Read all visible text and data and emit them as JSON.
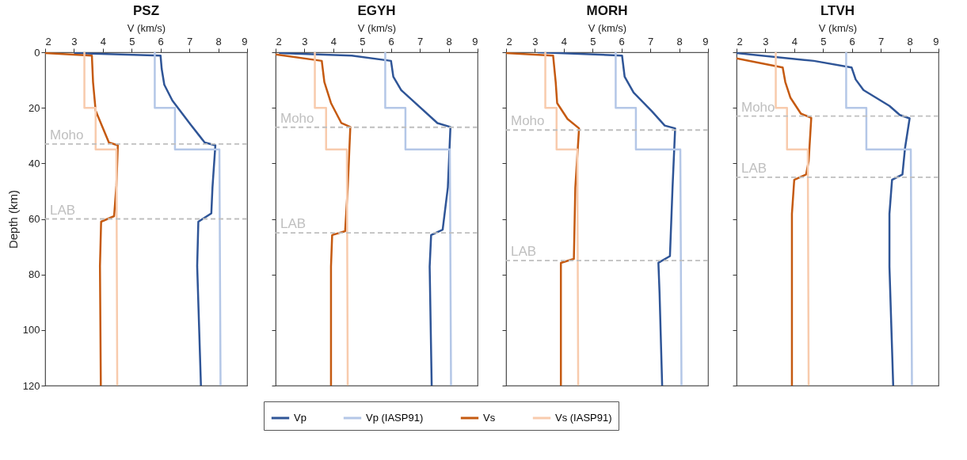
{
  "chart_data": [
    {
      "type": "line",
      "title": "PSZ",
      "xlabel": "V (km/s)",
      "ylabel": "Depth (km)",
      "xlim": [
        2,
        9
      ],
      "xticks": [
        2,
        3,
        4,
        5,
        6,
        7,
        8,
        9
      ],
      "ylim": [
        120,
        0
      ],
      "yticks": [
        0,
        20,
        40,
        60,
        80,
        100,
        120
      ],
      "legend": "bottom",
      "ref_lines": [
        {
          "axis": "y",
          "value": 33,
          "label": "Moho",
          "color": "#bfbfbf",
          "line_style": "dashed"
        },
        {
          "axis": "y",
          "value": 60,
          "label": "LAB",
          "color": "#bfbfbf",
          "line_style": "dashed"
        }
      ],
      "series": [
        {
          "name": "Vp",
          "color": "#2f5597",
          "x": [
            3.0,
            6.0,
            6.04,
            6.13,
            6.41,
            7.04,
            7.53,
            7.9,
            7.8,
            7.76,
            7.31,
            7.27,
            7.4
          ],
          "values": [
            0.3,
            1.2,
            6,
            11.7,
            17.4,
            26,
            32.5,
            33.5,
            48.7,
            58,
            61,
            77,
            120
          ]
        },
        {
          "name": "Vp (IASP91)",
          "color": "#b4c7e7",
          "x": [
            5.8,
            5.8,
            6.5,
            6.5,
            8.04,
            8.08
          ],
          "values": [
            0,
            20,
            20,
            35,
            35,
            120
          ]
        },
        {
          "name": "Vs",
          "color": "#c55a11",
          "x": [
            2.0,
            3.62,
            3.66,
            3.75,
            4.21,
            4.52,
            4.47,
            4.39,
            3.94,
            3.9,
            3.93
          ],
          "values": [
            0.3,
            1.2,
            10.7,
            21,
            32.5,
            33.5,
            48,
            59,
            61,
            77,
            120
          ]
        },
        {
          "name": "Vs (IASP91)",
          "color": "#f8cbad",
          "x": [
            3.36,
            3.36,
            3.75,
            3.75,
            4.47,
            4.5
          ],
          "values": [
            0,
            20,
            20,
            35,
            35,
            120
          ]
        }
      ]
    },
    {
      "type": "line",
      "title": "EGYH",
      "xlabel": "V (km/s)",
      "xlim": [
        2,
        9
      ],
      "xticks": [
        2,
        3,
        4,
        5,
        6,
        7,
        8,
        9
      ],
      "ylim": [
        120,
        0
      ],
      "yticks": [
        0,
        20,
        40,
        60,
        80,
        100,
        120
      ],
      "tick_labels": "x",
      "ref_lines": [
        {
          "axis": "y",
          "value": 27,
          "label": "Moho",
          "color": "#bfbfbf",
          "line_style": "dashed"
        },
        {
          "axis": "y",
          "value": 65,
          "label": "LAB",
          "color": "#bfbfbf",
          "line_style": "dashed"
        }
      ],
      "series": [
        {
          "color": "#2f5597",
          "x": [
            2.12,
            4.64,
            6.0,
            6.08,
            6.35,
            7.61,
            8.06,
            7.97,
            7.79,
            7.39,
            7.34,
            7.41
          ],
          "values": [
            0.3,
            1.2,
            3.1,
            8.8,
            13.6,
            25.5,
            26.9,
            48.7,
            63.9,
            65.8,
            77.2,
            120
          ]
        },
        {
          "color": "#b4c7e7",
          "x": [
            5.8,
            5.8,
            6.5,
            6.5,
            8.04,
            8.08
          ],
          "values": [
            0,
            20,
            20,
            35,
            35,
            120
          ]
        },
        {
          "color": "#c55a11",
          "x": [
            2.0,
            3.6,
            3.69,
            3.92,
            4.28,
            4.59,
            4.5,
            4.41,
            3.96,
            3.92,
            3.92
          ],
          "values": [
            0.8,
            3.1,
            10.7,
            18.3,
            25.5,
            26.9,
            48.7,
            64.4,
            65.8,
            77.2,
            120
          ]
        },
        {
          "color": "#f8cbad",
          "x": [
            3.36,
            3.36,
            3.75,
            3.75,
            4.47,
            4.5
          ],
          "values": [
            0,
            20,
            20,
            35,
            35,
            120
          ]
        }
      ]
    },
    {
      "type": "line",
      "title": "MORH",
      "xlabel": "V (km/s)",
      "xlim": [
        2,
        9
      ],
      "xticks": [
        2,
        3,
        4,
        5,
        6,
        7,
        8,
        9
      ],
      "ylim": [
        120,
        0
      ],
      "yticks": [
        0,
        20,
        40,
        60,
        80,
        100,
        120
      ],
      "tick_labels": "x",
      "ref_lines": [
        {
          "axis": "y",
          "value": 28,
          "label": "Moho",
          "color": "#bfbfbf",
          "line_style": "dashed"
        },
        {
          "axis": "y",
          "value": 75,
          "label": "LAB",
          "color": "#bfbfbf",
          "line_style": "dashed"
        }
      ],
      "series": [
        {
          "color": "#2f5597",
          "x": [
            3.09,
            6.02,
            6.11,
            6.42,
            7.05,
            7.5,
            7.86,
            7.77,
            7.68,
            7.28,
            7.32,
            7.41
          ],
          "values": [
            0,
            1.2,
            8.8,
            14.5,
            21.2,
            26.4,
            27.4,
            48.7,
            73.4,
            75.8,
            86.7,
            120
          ]
        },
        {
          "color": "#b4c7e7",
          "x": [
            5.8,
            5.8,
            6.5,
            6.5,
            8.04,
            8.08
          ],
          "values": [
            0,
            20,
            20,
            35,
            35,
            120
          ]
        },
        {
          "color": "#c55a11",
          "x": [
            2.0,
            3.63,
            3.72,
            3.77,
            4.13,
            4.53,
            4.4,
            4.35,
            3.9,
            3.9
          ],
          "values": [
            0.3,
            1.2,
            10.7,
            18.3,
            24,
            27.4,
            48.7,
            74.4,
            75.8,
            120
          ]
        },
        {
          "color": "#f8cbad",
          "x": [
            3.36,
            3.36,
            3.75,
            3.75,
            4.47,
            4.5
          ],
          "values": [
            0,
            20,
            20,
            35,
            35,
            120
          ]
        }
      ]
    },
    {
      "type": "line",
      "title": "LTVH",
      "xlabel": "V (km/s)",
      "xlim": [
        2,
        9
      ],
      "xticks": [
        2,
        3,
        4,
        5,
        6,
        7,
        8,
        9
      ],
      "ylim": [
        120,
        0
      ],
      "yticks": [
        0,
        20,
        40,
        60,
        80,
        100,
        120
      ],
      "tick_labels": "x",
      "ref_lines": [
        {
          "axis": "y",
          "value": 23,
          "label": "Moho",
          "color": "#bfbfbf",
          "line_style": "dashed"
        },
        {
          "axis": "y",
          "value": 45,
          "label": "LAB",
          "color": "#bfbfbf",
          "line_style": "dashed"
        }
      ],
      "series": [
        {
          "color": "#2f5597",
          "x": [
            2.0,
            4.68,
            5.99,
            6.13,
            6.4,
            7.3,
            7.66,
            8.0,
            7.84,
            7.75,
            7.39,
            7.3,
            7.3,
            7.43
          ],
          "values": [
            0.3,
            3.1,
            5.5,
            9.8,
            13.6,
            19.3,
            22.6,
            23.8,
            34.5,
            44,
            45.9,
            58.2,
            77.2,
            120
          ]
        },
        {
          "color": "#b4c7e7",
          "x": [
            5.8,
            5.8,
            6.5,
            6.5,
            8.04,
            8.08
          ],
          "values": [
            0,
            20,
            20,
            35,
            35,
            120
          ]
        },
        {
          "color": "#c55a11",
          "x": [
            2.0,
            3.6,
            3.69,
            3.87,
            4.23,
            4.59,
            4.5,
            4.41,
            4.0,
            3.92,
            3.92
          ],
          "values": [
            2.2,
            5.5,
            10.7,
            16.4,
            22.1,
            23.6,
            39.2,
            44,
            45.9,
            58.2,
            120
          ]
        },
        {
          "color": "#f8cbad",
          "x": [
            3.36,
            3.36,
            3.75,
            3.75,
            4.47,
            4.5
          ],
          "values": [
            0,
            20,
            20,
            35,
            35,
            120
          ]
        }
      ]
    }
  ]
}
